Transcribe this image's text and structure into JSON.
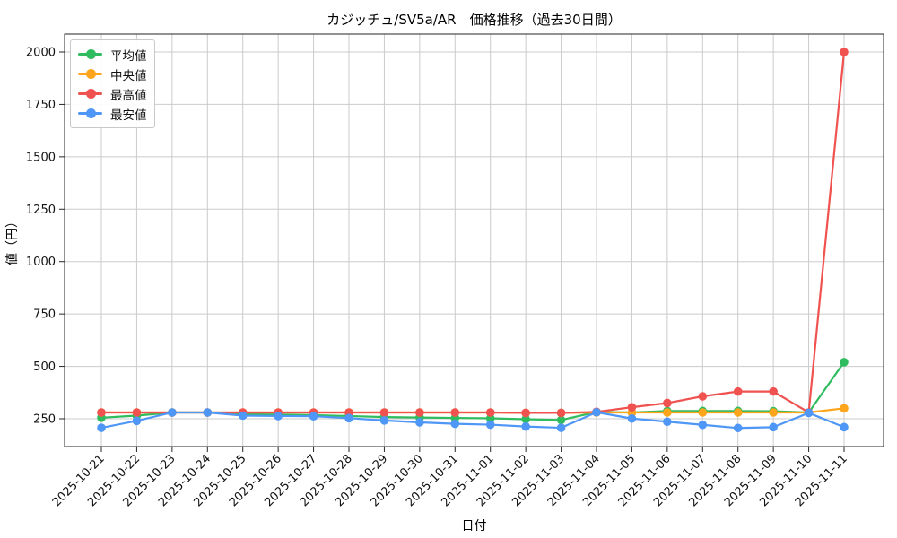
{
  "chart_data": {
    "type": "line",
    "title": "カジッチュ/SV5a/AR　価格推移（過去30日間）",
    "xlabel": "日付",
    "ylabel": "値（円）",
    "x": [
      "2025-10-21",
      "2025-10-22",
      "2025-10-23",
      "2025-10-24",
      "2025-10-25",
      "2025-10-26",
      "2025-10-27",
      "2025-10-28",
      "2025-10-29",
      "2025-10-30",
      "2025-10-31",
      "2025-11-01",
      "2025-11-02",
      "2025-11-03",
      "2025-11-04",
      "2025-11-05",
      "2025-11-06",
      "2025-11-07",
      "2025-11-08",
      "2025-11-09",
      "2025-11-10",
      "2025-11-11"
    ],
    "series": [
      {
        "id": "average",
        "name": "平均値",
        "color": "#2ebc5f",
        "values": [
          255,
          265,
          280,
          280,
          272,
          270,
          267,
          263,
          258,
          256,
          254,
          252,
          248,
          244,
          282,
          280,
          287,
          287,
          287,
          286,
          280,
          520
        ]
      },
      {
        "id": "median",
        "name": "中央値",
        "color": "#ffa51c",
        "values": [
          280,
          280,
          280,
          280,
          280,
          280,
          280,
          280,
          280,
          280,
          280,
          280,
          278,
          278,
          280,
          280,
          280,
          280,
          280,
          280,
          280,
          300
        ]
      },
      {
        "id": "max",
        "name": "最高値",
        "color": "#f0524f",
        "values": [
          280,
          280,
          280,
          280,
          280,
          280,
          280,
          280,
          280,
          280,
          280,
          280,
          278,
          278,
          283,
          305,
          325,
          357,
          380,
          380,
          280,
          2000
        ]
      },
      {
        "id": "min",
        "name": "最安値",
        "color": "#4f97f6",
        "values": [
          207,
          240,
          280,
          280,
          265,
          263,
          262,
          253,
          242,
          233,
          226,
          222,
          213,
          207,
          281,
          251,
          236,
          221,
          206,
          210,
          278,
          210
        ]
      }
    ],
    "yticks": [
      250,
      500,
      750,
      1000,
      1250,
      1500,
      1750,
      2000
    ],
    "ylim": [
      115,
      2085
    ],
    "grid": true,
    "legend_position": "upper-left",
    "colors": {
      "grid": "#cbcbcb",
      "spine": "#262626",
      "text": "#111111",
      "background": "#ffffff"
    }
  }
}
